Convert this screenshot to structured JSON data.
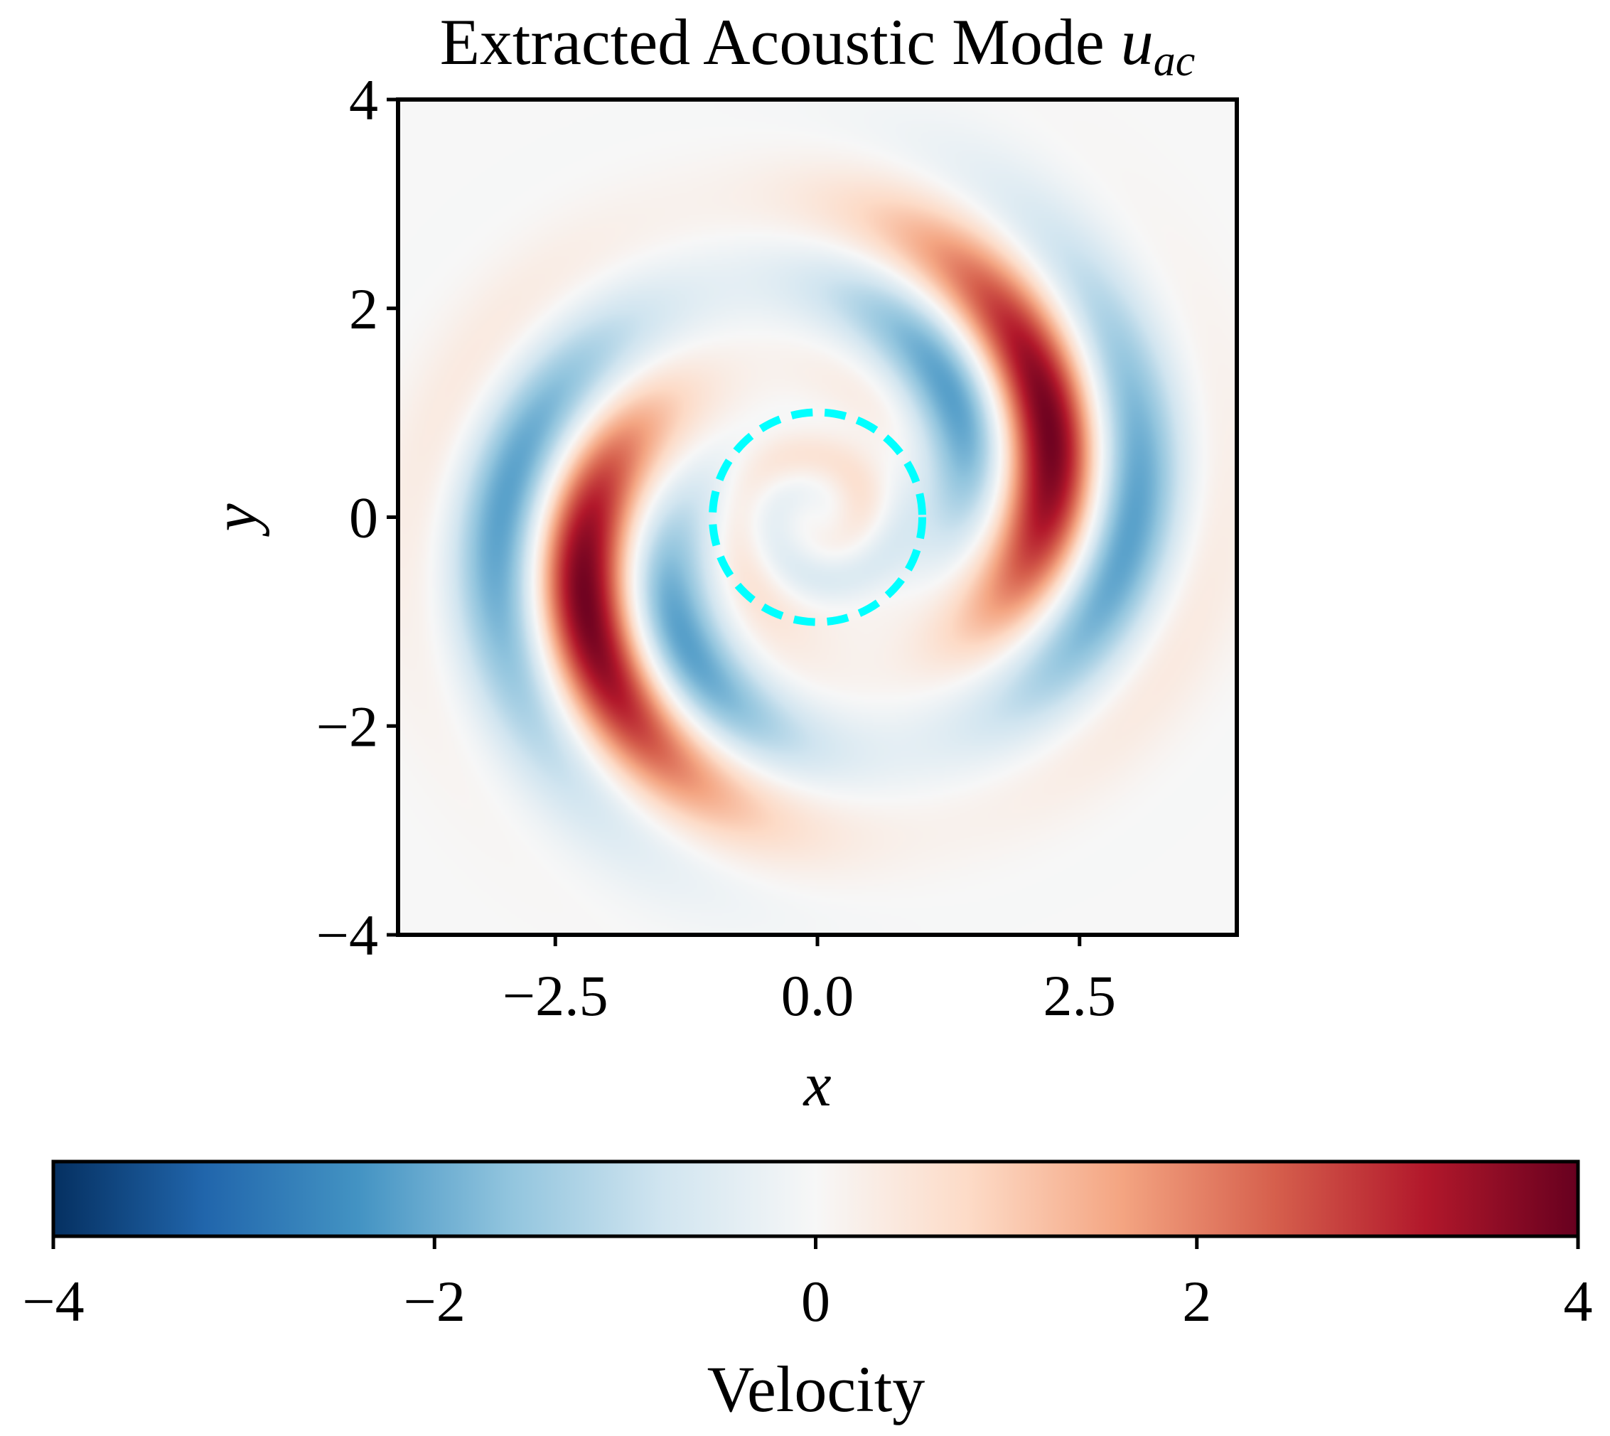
{
  "chart_data": {
    "type": "heatmap",
    "title": "Extracted Acoustic Mode ",
    "title_math": {
      "base": "u",
      "subscript": "ac"
    },
    "xlabel": "x",
    "ylabel": "y",
    "xlim": [
      -4,
      4
    ],
    "ylim": [
      -4,
      4
    ],
    "xticks": [
      -2.5,
      0.0,
      2.5
    ],
    "xtick_labels": [
      "−2.5",
      "0.0",
      "2.5"
    ],
    "yticks": [
      4,
      2,
      0,
      -2,
      -4
    ],
    "ytick_labels": [
      "4",
      "2",
      "0",
      "−2",
      "−4"
    ],
    "colormap": "RdBu_r",
    "color_range": [
      -4,
      4
    ],
    "colorbar": {
      "label": "Velocity",
      "orientation": "horizontal",
      "placement": "bottom",
      "ticks": [
        -4,
        -2,
        0,
        2,
        4
      ],
      "tick_labels": [
        "−4",
        "−2",
        "0",
        "2",
        "4"
      ],
      "stops": [
        "#053061",
        "#2166ac",
        "#4393c3",
        "#92c5de",
        "#d1e5f0",
        "#f7f7f7",
        "#fddbc7",
        "#f4a582",
        "#d6604d",
        "#b2182b",
        "#67001f"
      ]
    },
    "field": {
      "description_kind": "two-armed spiral wave pattern",
      "peak_amplitude": 3.9,
      "radial_wavenumber": 2.4,
      "angular_order": 2
    },
    "overlay_circle": {
      "center": [
        0,
        0
      ],
      "radius": 1.0,
      "color": "#00ffff",
      "style": "dashed"
    },
    "grid": false
  }
}
